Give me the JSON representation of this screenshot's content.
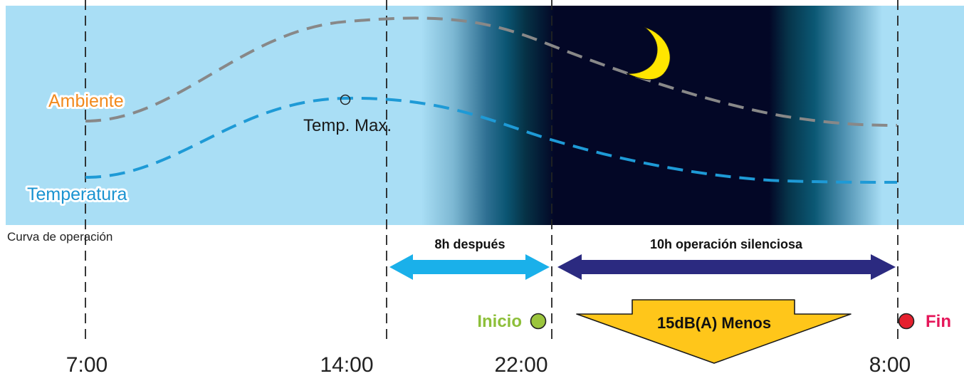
{
  "labels": {
    "ambient": "Ambiente",
    "temperature": "Temperatura",
    "temp_max": "Temp. Max.",
    "operation_curve": "Curva de operación",
    "after_8h": "8h después",
    "silent_10h": "10h operación silenciosa",
    "start": "Inicio",
    "end": "Fin",
    "noise_reduction": "15dB(A) Menos"
  },
  "times": {
    "t1": "7:00",
    "t2": "14:00",
    "t3": "22:00",
    "t4": "8:00"
  },
  "colors": {
    "sky": "#a9def5",
    "night": "#030726",
    "ambient_line": "#888888",
    "temperature_line": "#1e9ad6",
    "ambient_text": "#f28a1e",
    "temperature_text": "#1a93d1",
    "arrow_light": "#1ab0ea",
    "arrow_dark": "#2b2a80",
    "start_dot": "#9bc53d",
    "end_dot": "#e5202e",
    "start_text": "#8dbf3a",
    "end_text": "#e5175a",
    "moon": "#ffe600",
    "noise_arrow": "#ffc61a"
  },
  "icons": {
    "moon": "crescent-moon-icon",
    "start": "green-dot-icon",
    "end": "red-dot-icon"
  }
}
